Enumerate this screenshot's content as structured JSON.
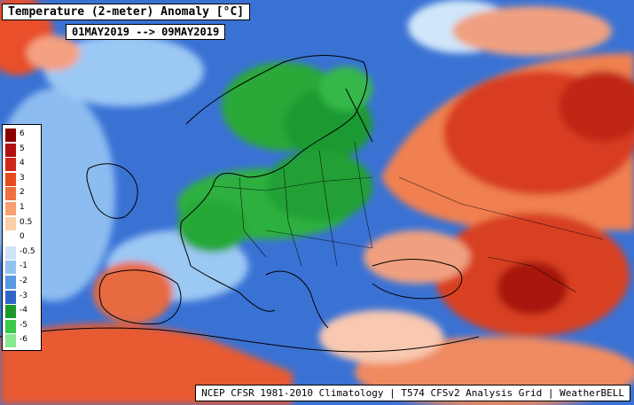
{
  "title": "Temperature (2-meter) Anomaly  [°C]",
  "date_range": "01MAY2019  --> 09MAY2019",
  "footer": "NCEP CFSR 1981-2010 Climatology | T574 CFSv2 Analysis Grid | WeatherBELL",
  "legend": {
    "entries": [
      {
        "label": "6",
        "color": "#8b0000"
      },
      {
        "label": "5",
        "color": "#b01010"
      },
      {
        "label": "4",
        "color": "#d02818"
      },
      {
        "label": "3",
        "color": "#e84a20"
      },
      {
        "label": "2",
        "color": "#f07040"
      },
      {
        "label": "1",
        "color": "#f8a070"
      },
      {
        "label": "0.5",
        "color": "#fbd0a8"
      },
      {
        "label": "0",
        "color": "#ffffff"
      },
      {
        "label": "-0.5",
        "color": "#cde4f8"
      },
      {
        "label": "-1",
        "color": "#93c2f0"
      },
      {
        "label": "-2",
        "color": "#5a98e0"
      },
      {
        "label": "-3",
        "color": "#2f64c8"
      },
      {
        "label": "-4",
        "color": "#1a9a2a"
      },
      {
        "label": "-5",
        "color": "#3cc848"
      },
      {
        "label": "-6",
        "color": "#8ae890"
      }
    ]
  }
}
